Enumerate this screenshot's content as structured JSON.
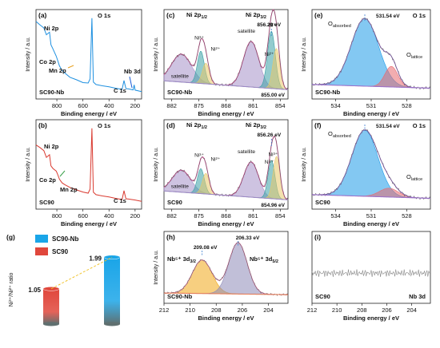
{
  "chart_data": [
    {
      "panel": "(a)",
      "type": "line",
      "sample": "SC90-Nb",
      "xlabel": "Binding energy / eV",
      "ylabel": "Intensity / a.u.",
      "xlim": [
        960,
        150
      ],
      "xticks": [
        "800",
        "600",
        "400",
        "200"
      ],
      "xtick_values": [
        800,
        600,
        400,
        200
      ],
      "color": "#1e90e0",
      "annotations": [
        "Ni 2p",
        "O 1s",
        "Co 2p",
        "Mn 2p",
        "Nb 3d",
        "C 1s"
      ],
      "x": [
        960,
        930,
        900,
        880,
        856,
        845,
        830,
        805,
        795,
        780,
        760,
        740,
        700,
        650,
        600,
        560,
        545,
        531,
        520,
        500,
        450,
        400,
        350,
        300,
        285,
        270,
        250,
        215,
        207,
        200,
        150
      ],
      "y": [
        0.95,
        0.9,
        0.86,
        0.78,
        0.82,
        0.66,
        0.6,
        0.5,
        0.45,
        0.38,
        0.33,
        0.3,
        0.24,
        0.2,
        0.16,
        0.16,
        0.22,
        1.0,
        0.18,
        0.14,
        0.12,
        0.11,
        0.1,
        0.09,
        0.2,
        0.09,
        0.08,
        0.07,
        0.14,
        0.08,
        0.06
      ]
    },
    {
      "panel": "(b)",
      "type": "line",
      "sample": "SC90",
      "xlabel": "Binding energy / eV",
      "ylabel": "Intensity / a.u.",
      "xlim": [
        960,
        150
      ],
      "xticks": [
        "800",
        "600",
        "400",
        "200"
      ],
      "xtick_values": [
        800,
        600,
        400,
        200
      ],
      "color": "#d93a30",
      "annotations": [
        "O 1s",
        "Ni 2p",
        "Co 2p",
        "Mn 2p",
        "C 1s"
      ],
      "x": [
        960,
        930,
        900,
        880,
        856,
        845,
        830,
        805,
        795,
        780,
        760,
        740,
        700,
        650,
        600,
        560,
        545,
        531,
        520,
        500,
        450,
        400,
        350,
        300,
        285,
        270,
        250,
        200,
        150
      ],
      "y": [
        0.78,
        0.74,
        0.7,
        0.62,
        0.66,
        0.52,
        0.48,
        0.44,
        0.4,
        0.34,
        0.3,
        0.28,
        0.24,
        0.2,
        0.17,
        0.16,
        0.22,
        1.0,
        0.18,
        0.14,
        0.12,
        0.11,
        0.1,
        0.09,
        0.2,
        0.09,
        0.08,
        0.07,
        0.06
      ]
    },
    {
      "panel": "(c)",
      "type": "area",
      "sample": "SC90-Nb",
      "xlabel": "Binding energy / eV",
      "ylabel": "Intensity / a.u.",
      "xlim": [
        884,
        852
      ],
      "xticks": [
        "882",
        "875",
        "868",
        "861",
        "854"
      ],
      "xtick_values": [
        882,
        875,
        868,
        861,
        854
      ],
      "labels": [
        "Ni 2p1/2",
        "Ni 2p3/2",
        "856.29 eV",
        "855.00 eV"
      ],
      "components": [
        {
          "name": "satellite",
          "center": 879.5,
          "width": 2.6,
          "height": 0.38,
          "color": "#a592c8"
        },
        {
          "name": "Ni³⁺",
          "center": 874.5,
          "width": 0.9,
          "height": 0.44,
          "color": "#3aa0a5"
        },
        {
          "name": "Ni²⁺",
          "center": 873.2,
          "width": 0.9,
          "height": 0.28,
          "color": "#e8c86a"
        },
        {
          "name": "satellite",
          "center": 861.5,
          "width": 2.0,
          "height": 0.62,
          "color": "#a592c8"
        },
        {
          "name": "Ni³⁺",
          "center": 856.29,
          "width": 1.0,
          "height": 0.78,
          "color": "#3aa0a5"
        },
        {
          "name": "Ni²⁺",
          "center": 855.0,
          "width": 0.9,
          "height": 0.55,
          "color": "#e8c86a"
        }
      ]
    },
    {
      "panel": "(d)",
      "type": "area",
      "sample": "SC90",
      "xlabel": "Binding energy / eV",
      "ylabel": "Intensity / a.u.",
      "xlim": [
        884,
        852
      ],
      "xticks": [
        "882",
        "875",
        "868",
        "861",
        "854"
      ],
      "xtick_values": [
        882,
        875,
        868,
        861,
        854
      ],
      "labels": [
        "Ni 2p1/2",
        "Ni 2p3/2",
        "856.26 eV",
        "854.96 eV"
      ],
      "components": [
        {
          "name": "satellite",
          "center": 879.5,
          "width": 2.4,
          "height": 0.3,
          "color": "#a592c8"
        },
        {
          "name": "Ni³⁺",
          "center": 874.5,
          "width": 0.9,
          "height": 0.34,
          "color": "#3aa0a5"
        },
        {
          "name": "Ni²⁺",
          "center": 873.2,
          "width": 0.9,
          "height": 0.28,
          "color": "#e8c86a"
        },
        {
          "name": "satellite",
          "center": 861.5,
          "width": 1.9,
          "height": 0.48,
          "color": "#a592c8"
        },
        {
          "name": "Ni³⁺",
          "center": 856.26,
          "width": 0.9,
          "height": 0.52,
          "color": "#3aa0a5"
        },
        {
          "name": "Ni²⁺",
          "center": 854.96,
          "width": 0.9,
          "height": 0.58,
          "color": "#e8c86a"
        }
      ]
    },
    {
      "panel": "(e)",
      "type": "area",
      "sample": "SC90-Nb",
      "xlabel": "Binding energy / eV",
      "ylabel": "Intensity / a.u.",
      "xlim": [
        536,
        526
      ],
      "xticks": [
        "534",
        "531",
        "528"
      ],
      "xtick_values": [
        534,
        531,
        528
      ],
      "labels": [
        "531.54 eV",
        "O 1s"
      ],
      "components": [
        {
          "name": "O",
          "sub": "absorbed",
          "center": 531.54,
          "width": 1.15,
          "height": 0.92,
          "color": "#1e9be8"
        },
        {
          "name": "O",
          "sub": "lattice",
          "center": 529.3,
          "width": 0.55,
          "height": 0.28,
          "color": "#e86a70"
        }
      ]
    },
    {
      "panel": "(f)",
      "type": "area",
      "sample": "SC90",
      "xlabel": "Binding energy / eV",
      "ylabel": "Intensity / a.u.",
      "xlim": [
        536,
        526
      ],
      "xticks": [
        "534",
        "531",
        "528"
      ],
      "xtick_values": [
        534,
        531,
        528
      ],
      "labels": [
        "531.54 eV",
        "O 1s"
      ],
      "components": [
        {
          "name": "O",
          "sub": "absorbed",
          "center": 531.54,
          "width": 1.1,
          "height": 0.9,
          "color": "#1e9be8"
        },
        {
          "name": "O",
          "sub": "lattice",
          "center": 529.5,
          "width": 0.8,
          "height": 0.12,
          "color": "#e86a70"
        }
      ]
    },
    {
      "panel": "(g)",
      "type": "bar",
      "ylabel": "Ni³⁺/Ni²⁺ ratio",
      "series": [
        {
          "name": "SC90",
          "value": 1.05,
          "label": "1.05",
          "color": "#e0473c"
        },
        {
          "name": "SC90-Nb",
          "value": 1.99,
          "label": "1.99",
          "color": "#1aa5e8"
        }
      ]
    },
    {
      "panel": "(h)",
      "type": "area",
      "sample": "SC90-Nb",
      "xlabel": "Binding energy / eV",
      "ylabel": "Intensity / a.u.",
      "xlim": [
        212,
        202.5
      ],
      "xticks": [
        "212",
        "210",
        "208",
        "206",
        "204"
      ],
      "xtick_values": [
        212,
        210,
        208,
        206,
        204
      ],
      "labels": [
        "209.08 eV",
        "206.33 eV"
      ],
      "components": [
        {
          "name": "Nb⁵⁺ 3d",
          "sub": "3/2",
          "center": 209.08,
          "width": 0.75,
          "height": 0.6,
          "color": "#f0a818"
        },
        {
          "name": "Nb⁵⁺ 3d",
          "sub": "5/2",
          "center": 206.33,
          "width": 0.7,
          "height": 0.92,
          "color": "#8e8ab8"
        }
      ]
    },
    {
      "panel": "(i)",
      "type": "line",
      "sample": "SC90",
      "xlabel": "Binding energy / eV",
      "ylabel": "",
      "xlim": [
        212,
        202.5
      ],
      "xticks": [
        "212",
        "210",
        "208",
        "206",
        "204"
      ],
      "xtick_values": [
        212,
        210,
        208,
        206,
        204
      ],
      "labels": [
        "Nb 3d"
      ],
      "level": 0.42
    }
  ]
}
